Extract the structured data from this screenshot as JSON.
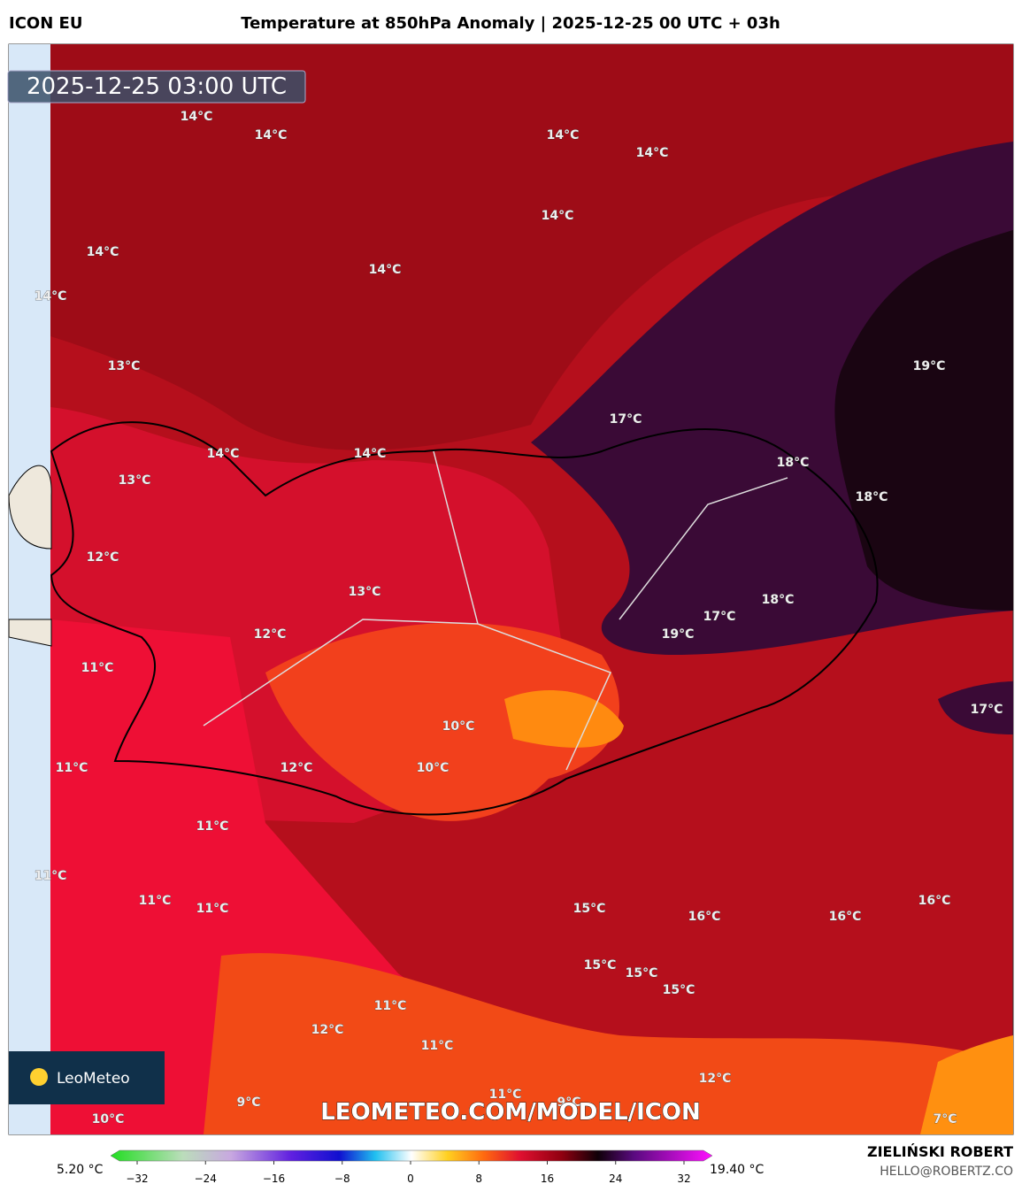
{
  "header": {
    "model": "ICON EU",
    "title": "Temperature at 850hPa Anomaly | 2025-12-25 00 UTC + 03h",
    "timestamp": "2025-12-25 03:00 UTC"
  },
  "map_labels": [
    "14°C",
    "14°C",
    "14°C",
    "14°C",
    "14°C",
    "14°C",
    "14°C",
    "14°C",
    "13°C",
    "19°C",
    "17°C",
    "14°C",
    "14°C",
    "18°C",
    "13°C",
    "18°C",
    "12°C",
    "13°C",
    "18°C",
    "17°C",
    "12°C",
    "19°C",
    "11°C",
    "17°C",
    "10°C",
    "11°C",
    "12°C",
    "10°C",
    "11°C",
    "11°C",
    "11°C",
    "11°C",
    "15°C",
    "16°C",
    "16°C",
    "16°C",
    "15°C",
    "15°C",
    "15°C",
    "11°C",
    "12°C",
    "11°C",
    "12°C",
    "11°C",
    "9°C",
    "9°C",
    "10°C",
    "7°C"
  ],
  "watermark": "LEOMETEO.COM/MODEL/ICON",
  "logo": "LeoMeteo",
  "colorbar": {
    "min_label": "5.20 °C",
    "max_label": "19.40 °C",
    "ticks": [
      {
        "value": -32,
        "label": "−32"
      },
      {
        "value": -24,
        "label": "−24"
      },
      {
        "value": -16,
        "label": "−16"
      },
      {
        "value": -8,
        "label": "−8"
      },
      0,
      8,
      16,
      24,
      32
    ]
  },
  "footer": {
    "author": "ZIELIŃSKI ROBERT",
    "contact": "HELLO@ROBERTZ.CO"
  }
}
